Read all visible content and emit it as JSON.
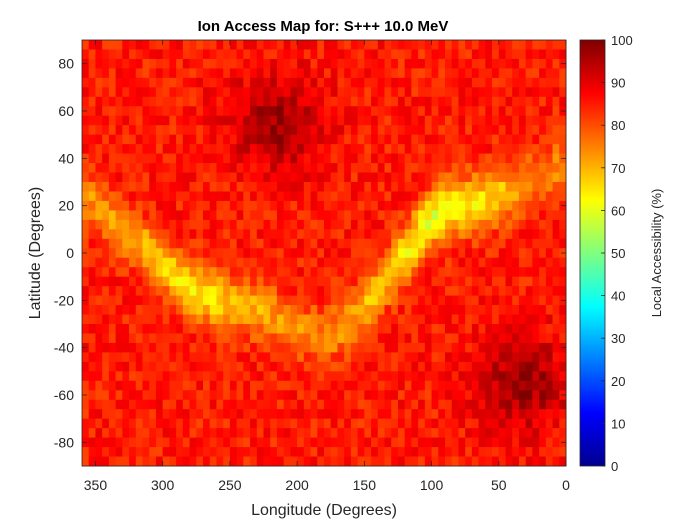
{
  "chart_data": {
    "type": "heatmap",
    "title": "Ion Access Map for: S+++ 10.0 MeV",
    "xlabel": "Longitude (Degrees)",
    "ylabel": "Latitude (Degrees)",
    "colorbar_label": "Local Accessibility (%)",
    "x_reversed": true,
    "xlim": [
      0,
      360
    ],
    "ylim": [
      -90,
      90
    ],
    "clim": [
      0,
      100
    ],
    "colormap": "jet",
    "x_ticks": [
      350,
      300,
      250,
      200,
      150,
      100,
      50,
      0
    ],
    "y_ticks": [
      80,
      60,
      40,
      20,
      0,
      -20,
      -40,
      -60,
      -80
    ],
    "colorbar_ticks": [
      0,
      10,
      20,
      30,
      40,
      50,
      60,
      70,
      80,
      90,
      100
    ],
    "x_tick_labels": [
      "350",
      "300",
      "250",
      "200",
      "150",
      "100",
      "50",
      "0"
    ],
    "y_tick_labels": [
      "80",
      "60",
      "40",
      "20",
      "0",
      "-20",
      "-40",
      "-60",
      "-80"
    ],
    "colorbar_tick_labels": [
      "0",
      "10",
      "20",
      "30",
      "40",
      "50",
      "60",
      "70",
      "80",
      "90",
      "100"
    ],
    "grid": false,
    "background_level": 85,
    "band_path": {
      "longitude": [
        360,
        330,
        300,
        280,
        260,
        240,
        220,
        200,
        180,
        160,
        140,
        120,
        100,
        80,
        60,
        40,
        20,
        0
      ],
      "latitude": [
        25,
        10,
        -5,
        -15,
        -20,
        -22,
        -26,
        -32,
        -35,
        -30,
        -15,
        0,
        15,
        20,
        22,
        26,
        32,
        38
      ],
      "peak_level": [
        74,
        72,
        66,
        64,
        66,
        70,
        72,
        74,
        74,
        72,
        68,
        64,
        60,
        62,
        66,
        70,
        74,
        76
      ]
    },
    "high_access_regions": [
      {
        "longitude": 215,
        "latitude": 55,
        "level": 97
      },
      {
        "longitude": 32,
        "latitude": -55,
        "level": 97
      }
    ]
  }
}
